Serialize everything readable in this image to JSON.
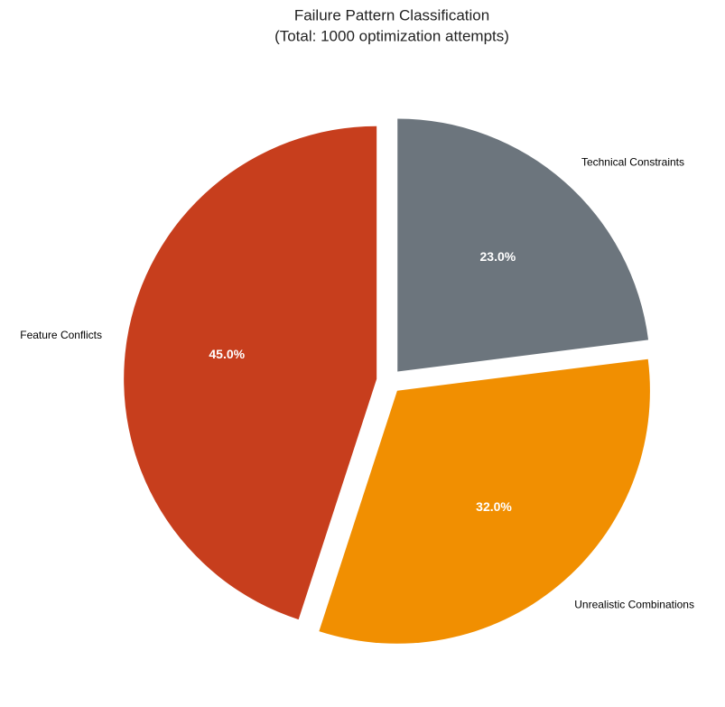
{
  "chart_data": {
    "type": "pie",
    "title": "Failure Pattern Classification",
    "subtitle": "(Total: 1000 optimization attempts)",
    "categories": [
      "Feature Conflicts",
      "Unrealistic Combinations",
      "Technical Constraints"
    ],
    "values": [
      45,
      32,
      23
    ],
    "value_labels": [
      "45.0%",
      "32.0%",
      "23.0%"
    ],
    "colors": [
      "#C73E1D",
      "#F18F01",
      "#6C757D"
    ]
  }
}
